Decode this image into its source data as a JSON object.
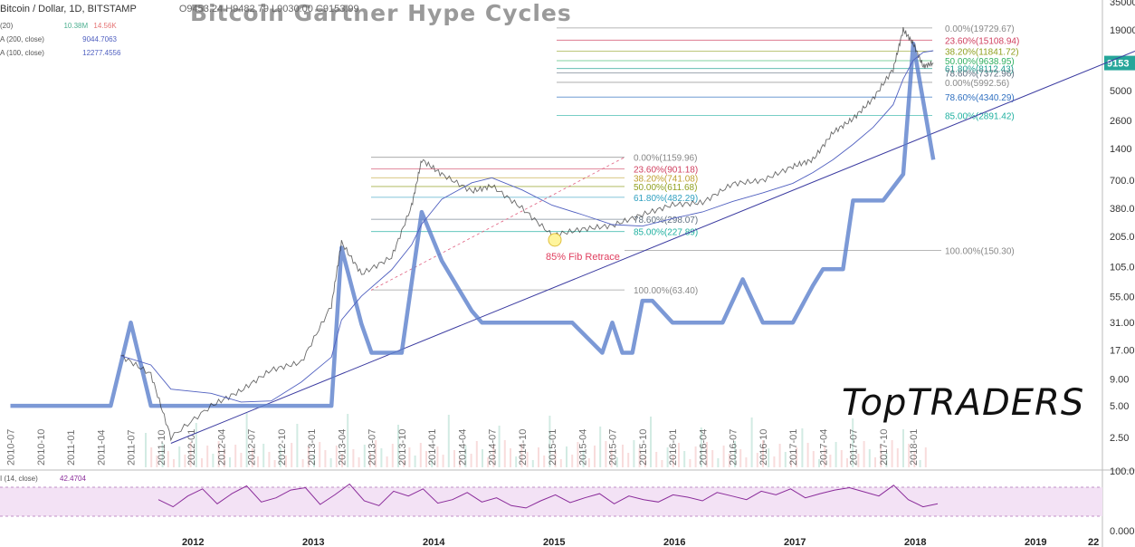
{
  "legend": {
    "symbol": "Bitcoin / Dollar, 1D, BITSTAMP",
    "ohlc": "O9453.24  H9482.79  L9030.00  C9153.99",
    "vol": "(20)",
    "vol_values": [
      "10.38M",
      "14.56K"
    ],
    "ma200": "A (200, close)",
    "ma200_value": "9044.7063",
    "ma100": "A (100, close)",
    "ma100_value": "12277.4556",
    "rsi": "I (14, close)",
    "rsi_value": "42.4704"
  },
  "overlay_title": "Bitcoin Gartner Hype Cycles",
  "watermark": "TopTRADERS",
  "price_badge": "9153",
  "colors": {
    "price": "#2a2a2a",
    "hype_line": "#5b7fcc",
    "trend": "#3a3aa0",
    "ma": "#5060c0",
    "rsi": "#8a2b9a",
    "rsi_band": "#f3e2f5",
    "badge": "#26a69a"
  },
  "chart_data": [
    {
      "type": "line",
      "title": "",
      "y_scale": "log",
      "y_ticks": [
        "35000",
        "19000",
        "9500",
        "5000",
        "2600",
        "1400",
        "700.00",
        "380.00",
        "205.00",
        "105.00",
        "55.00",
        "31.00",
        "17.00",
        "9.00",
        "5.00",
        "2.50"
      ],
      "x_ticks_years": [
        "2012",
        "2013",
        "2014",
        "2015",
        "2016",
        "2017",
        "2018",
        "2019",
        "22"
      ],
      "x_ticks_months": [
        "2010-07",
        "2010-10",
        "2011-01",
        "2011-04",
        "2011-07",
        "2011-10",
        "2012-01",
        "2012-04",
        "2012-07",
        "2012-10",
        "2013-01",
        "2013-04",
        "2013-07",
        "2013-10",
        "2014-01",
        "2014-04",
        "2014-07",
        "2014-10",
        "2015-01",
        "2015-04",
        "2015-07",
        "2015-10",
        "2016-01",
        "2016-04",
        "2016-07",
        "2016-10",
        "2017-01",
        "2017-04",
        "2017-07",
        "2017-10",
        "2018-01"
      ],
      "series": [
        {
          "x": [
            "2011-06",
            "2011-09",
            "2011-11",
            "2012-03",
            "2012-06",
            "2012-09",
            "2012-12",
            "2013-03",
            "2013-04",
            "2013-06",
            "2013-09",
            "2013-11",
            "2013-12",
            "2014-02",
            "2014-05",
            "2014-07",
            "2014-10",
            "2015-01",
            "2015-04",
            "2015-07",
            "2015-10",
            "2016-01",
            "2016-04",
            "2016-07",
            "2016-10",
            "2017-01",
            "2017-03",
            "2017-05",
            "2017-07",
            "2017-09",
            "2017-11",
            "2017-12",
            "2018-01",
            "2018-02",
            "2018-03"
          ],
          "values": [
            15,
            10,
            2.5,
            5,
            7,
            11,
            13,
            45,
            180,
            90,
            130,
            400,
            1100,
            800,
            550,
            620,
            380,
            210,
            240,
            260,
            330,
            410,
            430,
            650,
            700,
            950,
            1100,
            2000,
            2700,
            4200,
            8000,
            19000,
            14000,
            8500,
            9153
          ]
        },
        {
          "x": [
            "2010-07",
            "2011-03",
            "2011-05",
            "2011-07",
            "2011-09",
            "2011-11",
            "2012-03",
            "2012-07",
            "2012-12",
            "2013-03",
            "2013-04",
            "2013-06",
            "2013-07",
            "2013-10",
            "2013-12",
            "2014-02",
            "2014-05",
            "2014-06",
            "2014-10",
            "2015-01",
            "2015-03",
            "2015-06",
            "2015-07",
            "2015-08",
            "2015-09",
            "2015-10",
            "2015-11",
            "2016-01",
            "2016-03",
            "2016-06",
            "2016-08",
            "2016-10",
            "2017-01",
            "2017-03",
            "2017-04",
            "2017-06",
            "2017-07",
            "2017-10",
            "2017-12",
            "2018-01",
            "2018-03"
          ],
          "values": [
            5,
            5,
            5,
            31,
            5,
            5,
            5,
            5,
            5,
            5,
            160,
            30,
            16,
            16,
            350,
            120,
            40,
            31,
            31,
            31,
            31,
            16,
            31,
            16,
            16,
            50,
            50,
            31,
            31,
            31,
            80,
            31,
            31,
            70,
            100,
            100,
            450,
            450,
            800,
            14000,
            1100
          ]
        },
        {
          "x": [
            "2011-11",
            "2018-04"
          ],
          "values": [
            2.2,
            16000
          ]
        }
      ],
      "fib_levels": [
        {
          "label": "0.00%(19729.67)",
          "value": 19729.67
        },
        {
          "label": "23.60%(15108.94)",
          "value": 15108.94
        },
        {
          "label": "38.20%(11841.72)",
          "value": 11841.72
        },
        {
          "label": "50.00%(9638.95)",
          "value": 9638.95
        },
        {
          "label": "61.80%(8112.43)",
          "value": 8112.43
        },
        {
          "label": "78.60%(7372.96)",
          "value": 7372.96
        },
        {
          "label": "0.00%(5992.56)",
          "value": 5992.56
        },
        {
          "label": "78.60%(4340.29)",
          "value": 4340.29
        },
        {
          "label": "85.00%(2891.42)",
          "value": 2891.42
        },
        {
          "label": "0.00%(1159.96)",
          "value": 1159.96
        },
        {
          "label": "23.60%(901.18)",
          "value": 901.18
        },
        {
          "label": "38.20%(741.08)",
          "value": 741.08
        },
        {
          "label": "50.00%(611.68)",
          "value": 611.68
        },
        {
          "label": "61.80%(482.29)",
          "value": 482.29
        },
        {
          "label": "78.60%(298.07)",
          "value": 298.07
        },
        {
          "label": "85.00%(227.89)",
          "value": 227.89
        },
        {
          "label": "100.00%(150.30)",
          "value": 150.3
        },
        {
          "label": "100.00%(63.40)",
          "value": 63.4
        }
      ],
      "annotations": [
        "85% Fib Retrace"
      ]
    },
    {
      "type": "line",
      "title": "",
      "y_ticks": [
        "100.00",
        "0.000"
      ],
      "ylim": [
        0,
        100
      ],
      "series": [
        {
          "values": [
            52,
            40,
            58,
            70,
            45,
            62,
            75,
            48,
            55,
            68,
            72,
            44,
            60,
            78,
            50,
            42,
            66,
            58,
            70,
            46,
            52,
            64,
            48,
            55,
            42,
            38,
            50,
            60,
            47,
            55,
            62,
            45,
            58,
            52,
            48,
            60,
            56,
            50,
            64,
            58,
            52,
            66,
            60,
            70,
            55,
            62,
            68,
            72,
            65,
            58,
            76,
            52,
            40,
            45
          ]
        }
      ]
    }
  ]
}
